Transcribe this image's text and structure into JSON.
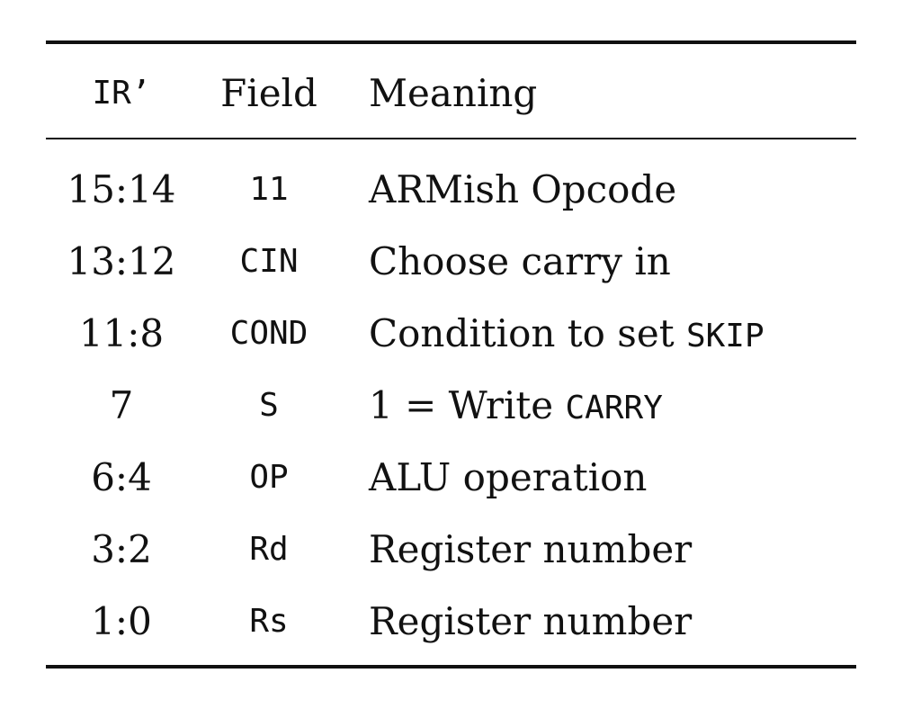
{
  "table": {
    "headers": [
      "IR’",
      "Field",
      "Meaning"
    ],
    "rows": [
      {
        "bits": "15:14",
        "field": "11",
        "meaning": "ARMish Opcode",
        "meaning_code": ""
      },
      {
        "bits": "13:12",
        "field": "CIN",
        "meaning": "Choose carry in",
        "meaning_code": ""
      },
      {
        "bits": "11:8",
        "field": "COND",
        "meaning": "Condition to set ",
        "meaning_code": "SKIP"
      },
      {
        "bits": "7",
        "field": "S",
        "meaning": "1 = Write ",
        "meaning_code": "CARRY"
      },
      {
        "bits": "6:4",
        "field": "OP",
        "meaning": "ALU operation",
        "meaning_code": ""
      },
      {
        "bits": "3:2",
        "field": "Rd",
        "meaning": "Register number",
        "meaning_code": ""
      },
      {
        "bits": "1:0",
        "field": "Rs",
        "meaning": "Register number",
        "meaning_code": ""
      }
    ]
  }
}
